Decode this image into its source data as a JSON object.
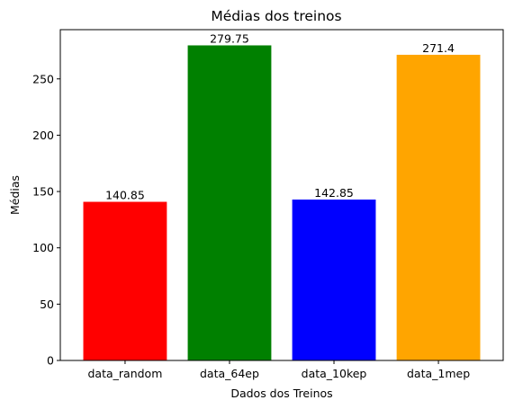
{
  "chart_data": {
    "type": "bar",
    "title": "Médias dos treinos",
    "xlabel": "Dados dos Treinos",
    "ylabel": "Médias",
    "categories": [
      "data_random",
      "data_64ep",
      "data_10kep",
      "data_1mep"
    ],
    "values": [
      140.85,
      279.75,
      142.85,
      271.4
    ],
    "value_labels": [
      "140.85",
      "279.75",
      "142.85",
      "271.4"
    ],
    "colors": [
      "#ff0000",
      "#008000",
      "#0000ff",
      "#ffa500"
    ],
    "ylim": [
      0,
      293.7
    ],
    "yticks": [
      0,
      50,
      100,
      150,
      200,
      250
    ],
    "grid": false,
    "legend": "none"
  }
}
